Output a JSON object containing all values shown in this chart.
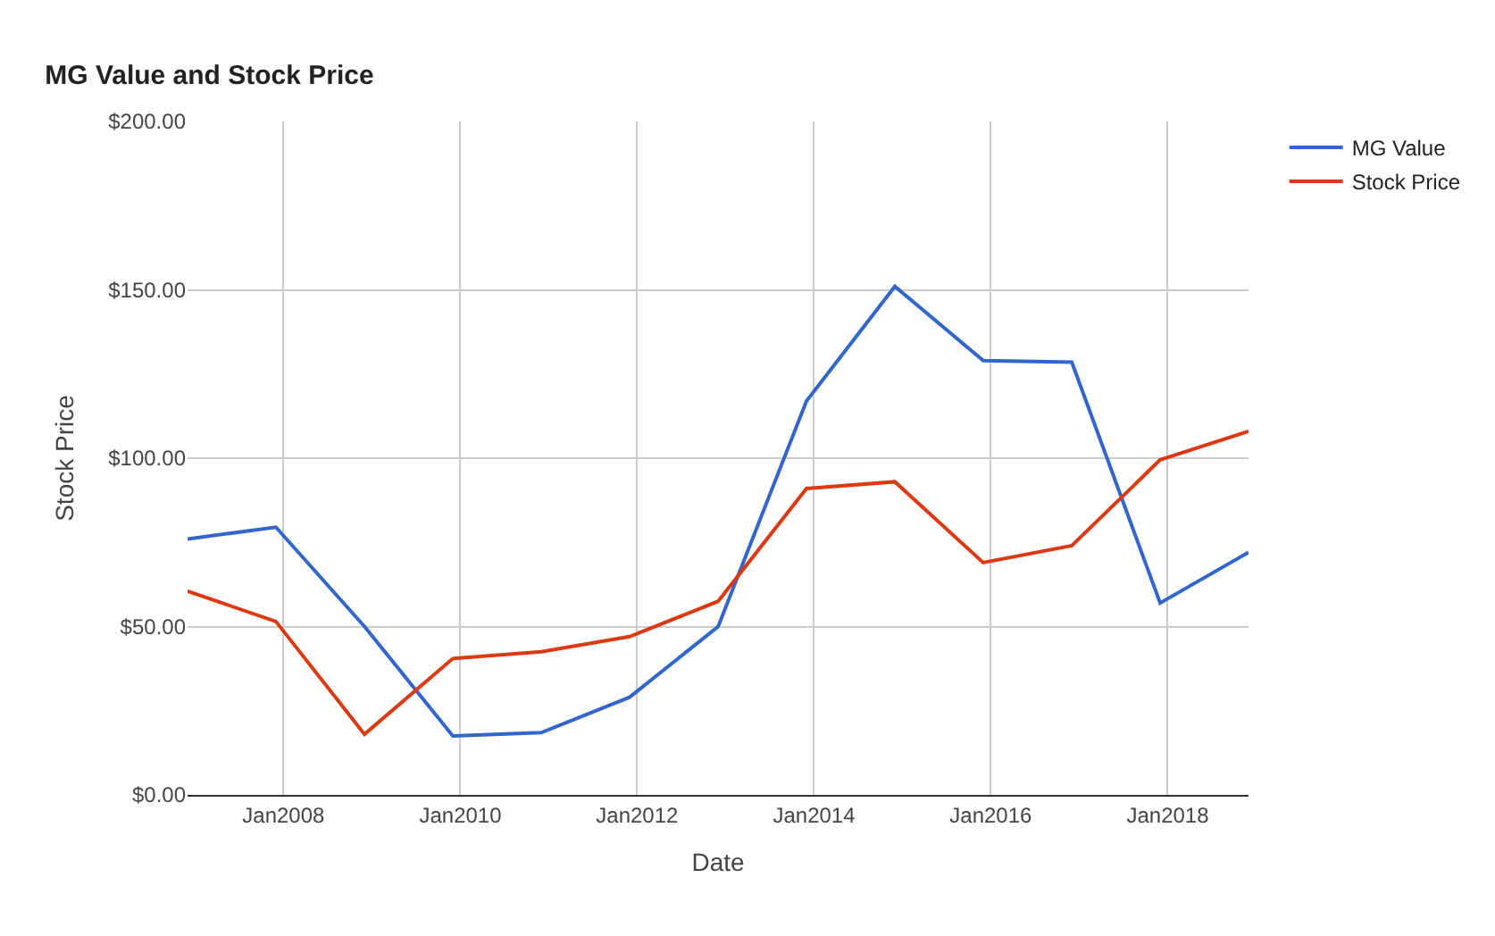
{
  "chart_data": {
    "type": "line",
    "title": "MG Value and Stock Price",
    "xlabel": "Date",
    "ylabel": "Stock Price",
    "x": [
      "2006-12-01",
      "2007-12-01",
      "2008-12-01",
      "2009-12-01",
      "2010-12-01",
      "2011-12-01",
      "2012-12-01",
      "2013-12-01",
      "2014-12-01",
      "2015-12-01",
      "2016-12-01",
      "2017-12-01",
      "2018-12-01"
    ],
    "series": [
      {
        "name": "MG Value",
        "color": "#3366cc",
        "values": [
          76,
          79.5,
          50,
          17.5,
          18.5,
          29,
          50,
          117,
          151,
          129,
          128.5,
          57,
          72
        ]
      },
      {
        "name": "Stock Price",
        "color": "#dc3912",
        "values": [
          60.5,
          51.5,
          18,
          40.5,
          42.5,
          47,
          57.5,
          91,
          93,
          69,
          74,
          99.5,
          108
        ]
      }
    ],
    "xlim": [
      "2006-12-01",
      "2018-12-01"
    ],
    "xticks": [
      {
        "value": "2008-01-01",
        "label": "Jan2008"
      },
      {
        "value": "2010-01-01",
        "label": "Jan2010"
      },
      {
        "value": "2012-01-01",
        "label": "Jan2012"
      },
      {
        "value": "2014-01-01",
        "label": "Jan2014"
      },
      {
        "value": "2016-01-01",
        "label": "Jan2016"
      },
      {
        "value": "2018-01-01",
        "label": "Jan2018"
      }
    ],
    "ylim": [
      0,
      200
    ],
    "yticks": [
      {
        "value": 0,
        "label": "$0.00"
      },
      {
        "value": 50,
        "label": "$50.00"
      },
      {
        "value": 100,
        "label": "$100.00"
      },
      {
        "value": 150,
        "label": "$150.00"
      },
      {
        "value": 200,
        "label": "$200.00"
      }
    ],
    "grid": true,
    "legend": "top right",
    "marker": "none",
    "line_style": "solid"
  }
}
